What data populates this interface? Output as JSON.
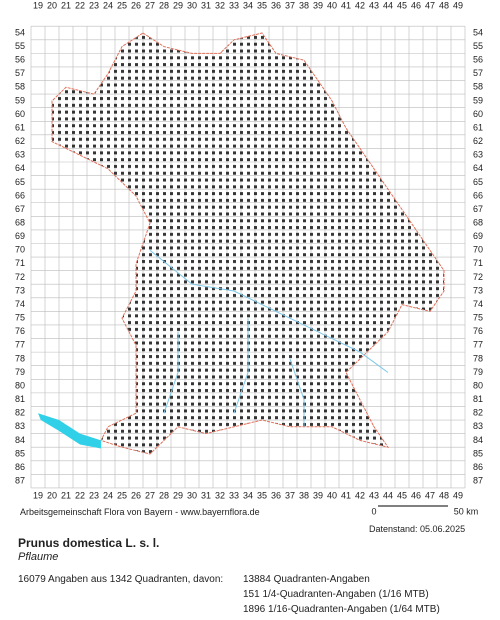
{
  "grid": {
    "columns": [
      19,
      20,
      21,
      22,
      23,
      24,
      25,
      26,
      27,
      28,
      29,
      30,
      31,
      32,
      33,
      34,
      35,
      36,
      37,
      38,
      39,
      40,
      41,
      42,
      43,
      44,
      45,
      46,
      47,
      48,
      49
    ],
    "rows": [
      54,
      55,
      56,
      57,
      58,
      59,
      60,
      61,
      62,
      63,
      64,
      65,
      66,
      67,
      68,
      69,
      70,
      71,
      72,
      73,
      74,
      75,
      76,
      77,
      78,
      79,
      80,
      81,
      82,
      83,
      84,
      85,
      86,
      87
    ]
  },
  "credit": "Arbeitsgemeinschaft Flora von Bayern - www.bayernflora.de",
  "scale": {
    "start": "0",
    "end": "50 km"
  },
  "date": "Datenstand: 05.06.2025",
  "species": {
    "name": "Prunus domestica L. s. l.",
    "common": "Pflaume"
  },
  "stats": {
    "summary": "16079 Angaben aus 1342 Quadranten, davon:",
    "lines": [
      "13884 Quadranten-Angaben",
      "151 1/4-Quadranten-Angaben (1/16 MTB)",
      "1896 1/16-Quadranten-Angaben (1/64 MTB)"
    ]
  }
}
